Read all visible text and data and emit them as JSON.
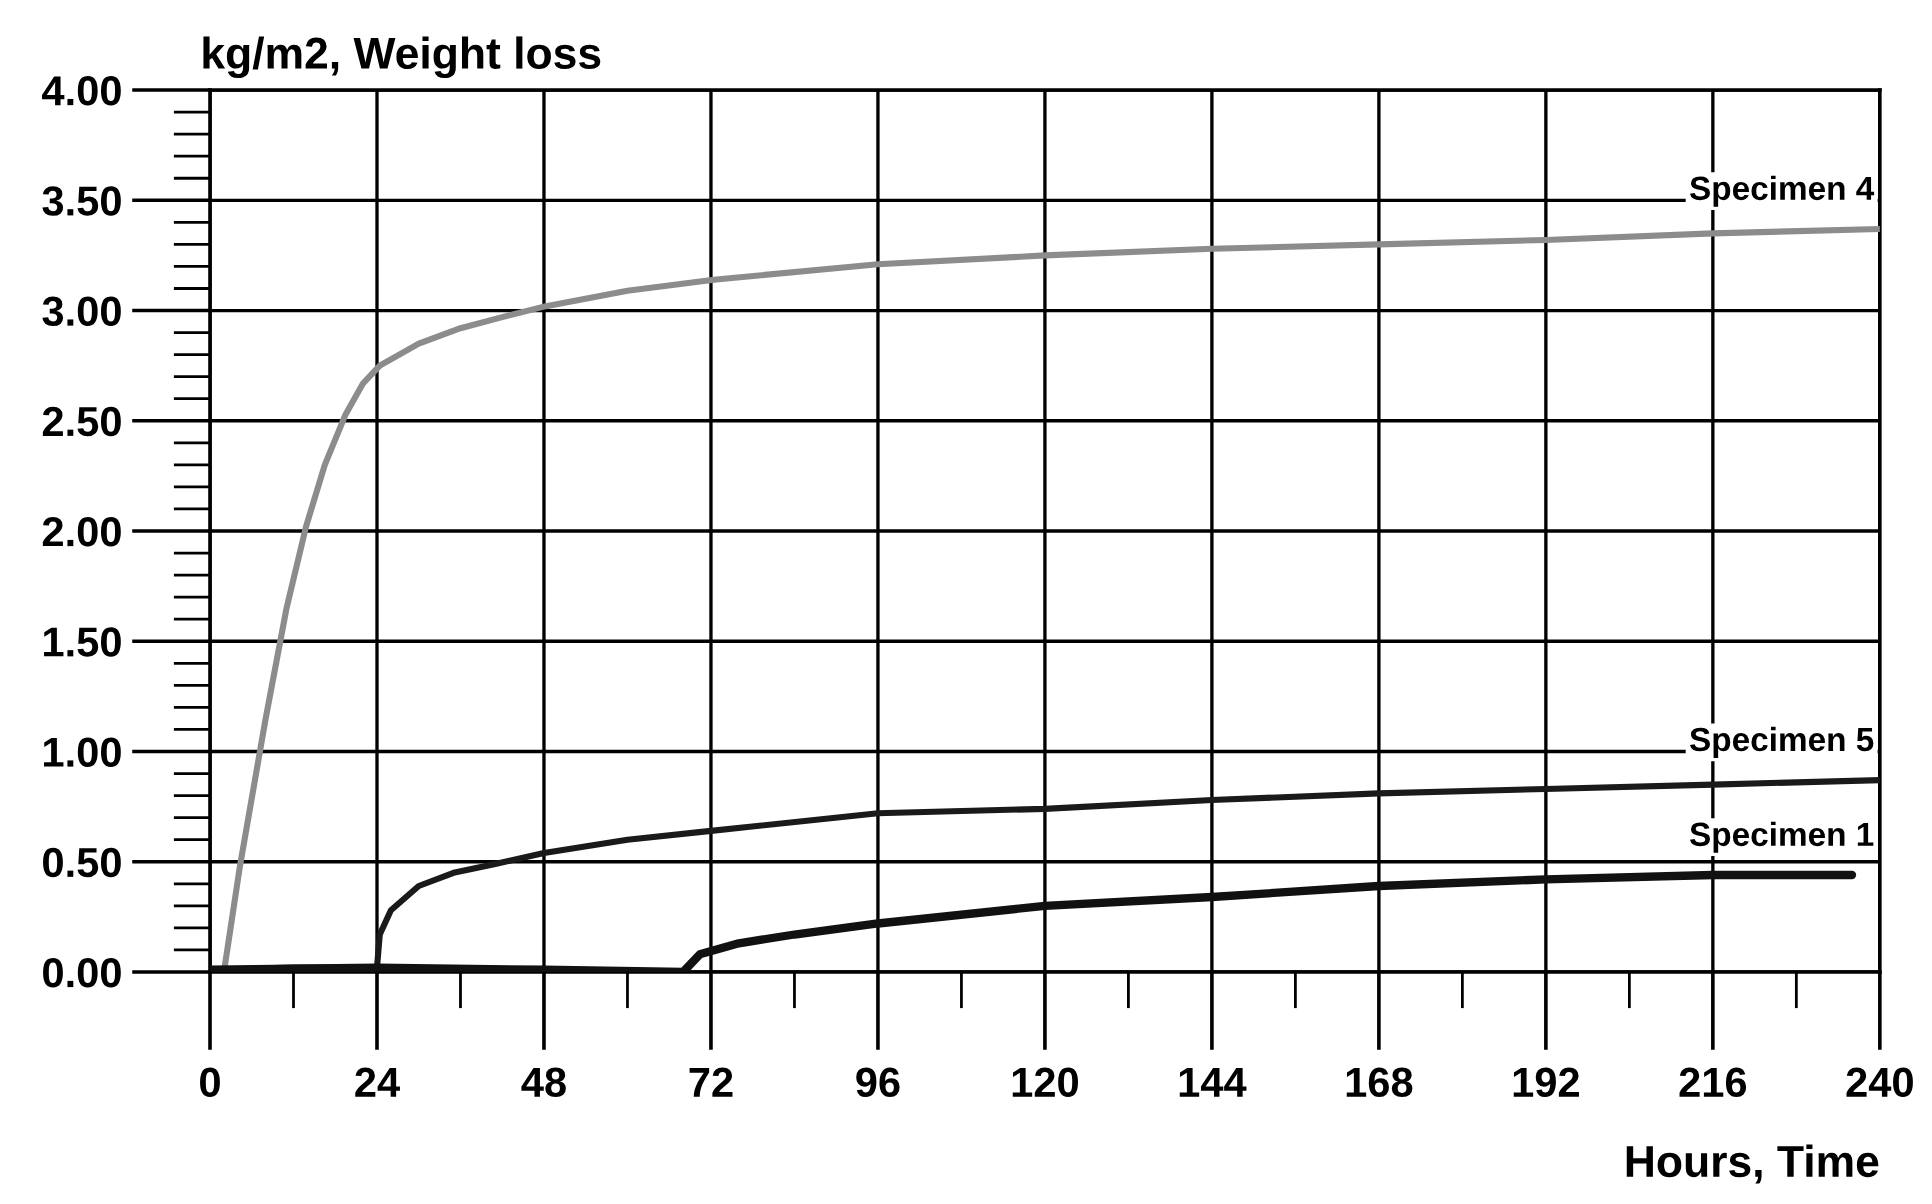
{
  "chart_data": {
    "type": "line",
    "ylabel": "kg/m2, Weight loss",
    "xlabel": "Hours, Time",
    "xlim": [
      0,
      240
    ],
    "xticks": [
      0,
      24,
      48,
      72,
      96,
      120,
      144,
      168,
      192,
      216,
      240
    ],
    "ylim": [
      0,
      4
    ],
    "yticks": [
      {
        "value": 0,
        "label": "0.00"
      },
      {
        "value": 0.5,
        "label": "0.50"
      },
      {
        "value": 1,
        "label": "1.00"
      },
      {
        "value": 1.5,
        "label": "1.50"
      },
      {
        "value": 2,
        "label": "2.00"
      },
      {
        "value": 2.5,
        "label": "2.50"
      },
      {
        "value": 3,
        "label": "3.00"
      },
      {
        "value": 3.5,
        "label": "3.50"
      },
      {
        "value": 4,
        "label": "4.00"
      }
    ],
    "grid": true,
    "marker": "none",
    "line_style": "solid",
    "series": [
      {
        "name": "Specimen 4",
        "color": "#8c8c8c",
        "x": [
          2,
          4.3,
          8,
          11,
          13.8,
          16.5,
          19.5,
          22,
          24.4,
          30,
          36,
          42,
          48.3,
          60,
          72.4,
          96,
          120,
          144,
          168,
          192,
          216,
          240
        ],
        "values": [
          0,
          0.48,
          1.15,
          1.65,
          2.02,
          2.3,
          2.53,
          2.67,
          2.75,
          2.85,
          2.92,
          2.97,
          3.02,
          3.09,
          3.14,
          3.21,
          3.25,
          3.28,
          3.3,
          3.32,
          3.35,
          3.37
        ]
      },
      {
        "name": "Specimen 5",
        "color": "#1a1a1a",
        "x": [
          0,
          12,
          24,
          24.4,
          26,
          30,
          35,
          41,
          48,
          60,
          72,
          96,
          120,
          144,
          168,
          192,
          216,
          240
        ],
        "values": [
          0.01,
          0.02,
          0.02,
          0.17,
          0.28,
          0.39,
          0.45,
          0.49,
          0.54,
          0.6,
          0.64,
          0.72,
          0.74,
          0.78,
          0.81,
          0.83,
          0.85,
          0.87
        ]
      },
      {
        "name": "Specimen 1",
        "color": "#111111",
        "x": [
          0,
          24,
          48,
          68,
          70.4,
          76,
          84,
          96,
          120,
          144,
          168,
          192,
          216,
          236
        ],
        "values": [
          0.01,
          0.02,
          0.01,
          0.0,
          0.08,
          0.13,
          0.17,
          0.22,
          0.3,
          0.34,
          0.39,
          0.42,
          0.44,
          0.44
        ]
      }
    ]
  }
}
